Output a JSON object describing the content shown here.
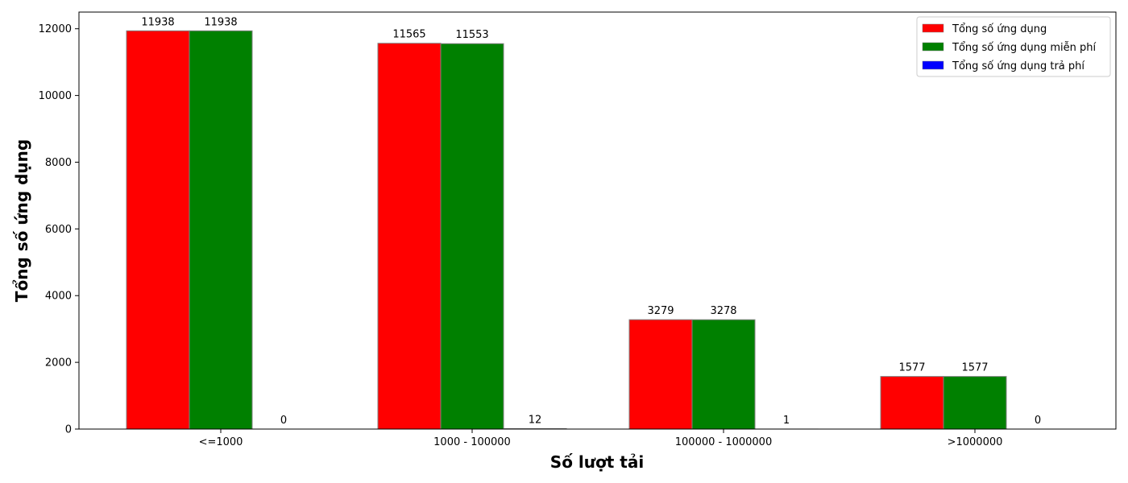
{
  "chart_data": {
    "type": "bar",
    "title": "",
    "xlabel": "Số lượt tải",
    "ylabel": "Tổng số ứng dụng",
    "categories": [
      "<=1000",
      "1000 - 100000",
      "100000 - 1000000",
      ">1000000"
    ],
    "series": [
      {
        "name": "Tổng số ứng dụng",
        "color": "#ff0000",
        "values": [
          11938,
          11565,
          3279,
          1577
        ]
      },
      {
        "name": "Tổng số ứng dụng miễn phí",
        "color": "#008000",
        "values": [
          11938,
          11553,
          3278,
          1577
        ]
      },
      {
        "name": "Tổng số ứng dụng trả phí",
        "color": "#0000ff",
        "values": [
          0,
          12,
          1,
          0
        ]
      }
    ],
    "ylim": [
      0,
      12500
    ],
    "yticks": [
      0,
      2000,
      4000,
      6000,
      8000,
      10000,
      12000
    ],
    "grid": false,
    "legend_position": "top-right",
    "bar_edge_color": "#808080",
    "data_labels": true
  }
}
